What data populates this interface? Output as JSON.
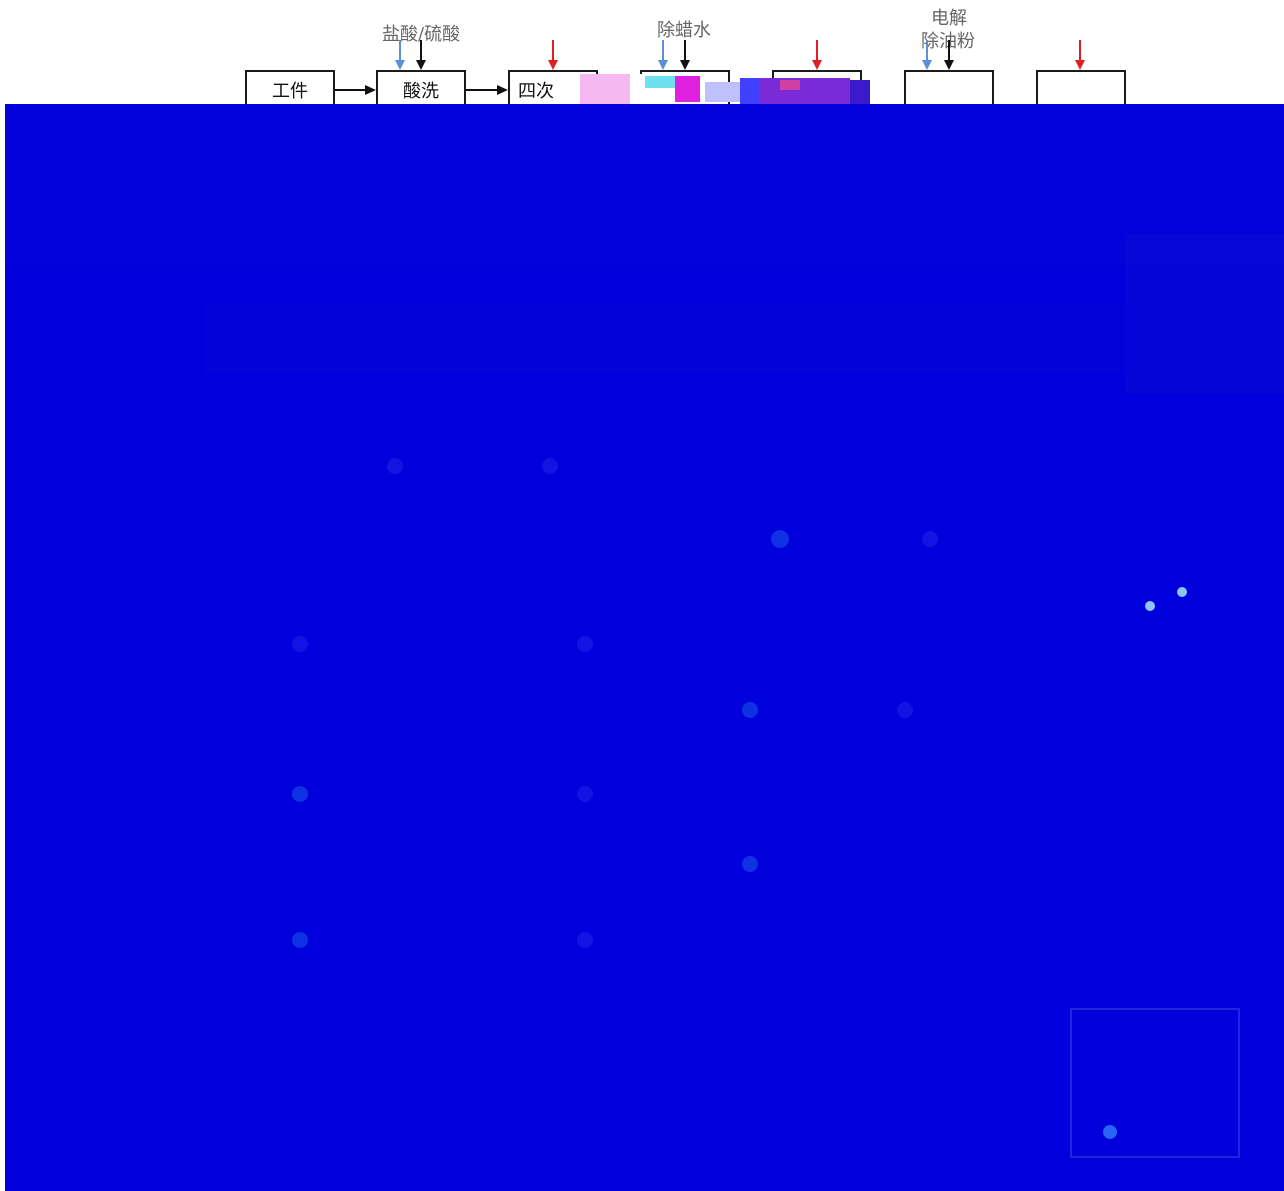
{
  "diagram": {
    "inputs": {
      "acid": "盐酸/硫酸",
      "wax_remover": "除蜡水",
      "electrolytic_1": "电解",
      "electrolytic_2": "除油粉"
    },
    "steps": [
      {
        "label": "工件"
      },
      {
        "label": "酸洗"
      },
      {
        "label": "四次"
      },
      {
        "label": ""
      },
      {
        "label": ""
      },
      {
        "label": ""
      },
      {
        "label": ""
      }
    ],
    "colors": {
      "overlay": "#0000dd",
      "box_border": "#1a1a1a",
      "arrow_blue": "#5b8fd8",
      "arrow_black": "#111111",
      "arrow_red": "#e02020",
      "label_gray": "#666666"
    },
    "occluded": true
  }
}
